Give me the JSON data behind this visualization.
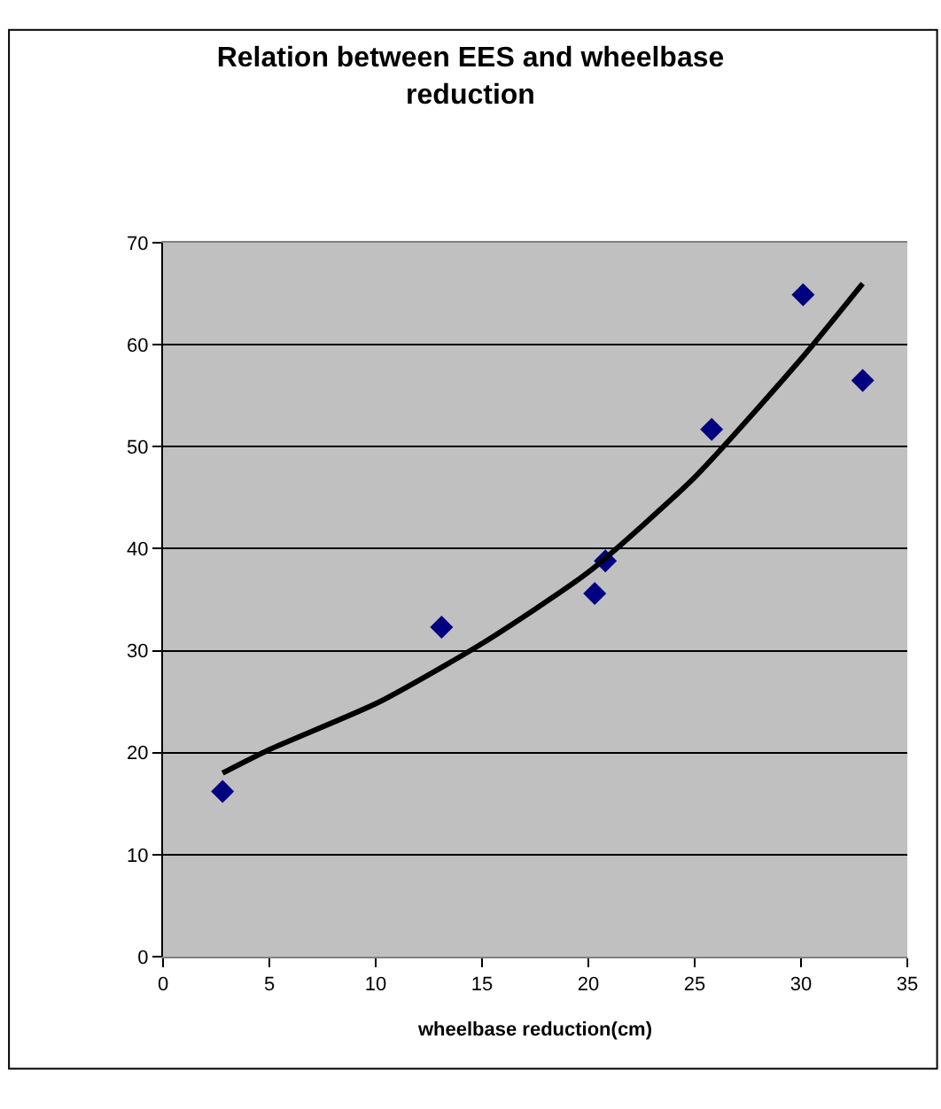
{
  "chart_data": {
    "type": "scatter",
    "title": "Relation between EES and wheelbase reduction",
    "xlabel": "wheelbase reduction(cm)",
    "xlim": [
      0,
      35
    ],
    "xticks": [
      0,
      5,
      10,
      15,
      20,
      25,
      30,
      35
    ],
    "ylim": [
      0,
      70
    ],
    "yticks": [
      0,
      10,
      20,
      30,
      40,
      50,
      60,
      70
    ],
    "grid": "y",
    "legend": false,
    "series": [
      {
        "marker": "diamond",
        "color": "#000080",
        "x": [
          2.8,
          13.1,
          20.3,
          20.8,
          25.8,
          30.1,
          32.9
        ],
        "values": [
          16.2,
          32.3,
          35.6,
          38.8,
          51.7,
          64.9,
          56.5
        ]
      },
      {
        "type": "line",
        "marker": "none",
        "color": "#000000",
        "x": [
          2.8,
          5,
          10.1,
          15,
          20,
          25,
          30,
          32.9
        ],
        "values": [
          18.0,
          20.3,
          24.9,
          30.7,
          37.7,
          47.0,
          58.6,
          66.0
        ]
      }
    ]
  }
}
